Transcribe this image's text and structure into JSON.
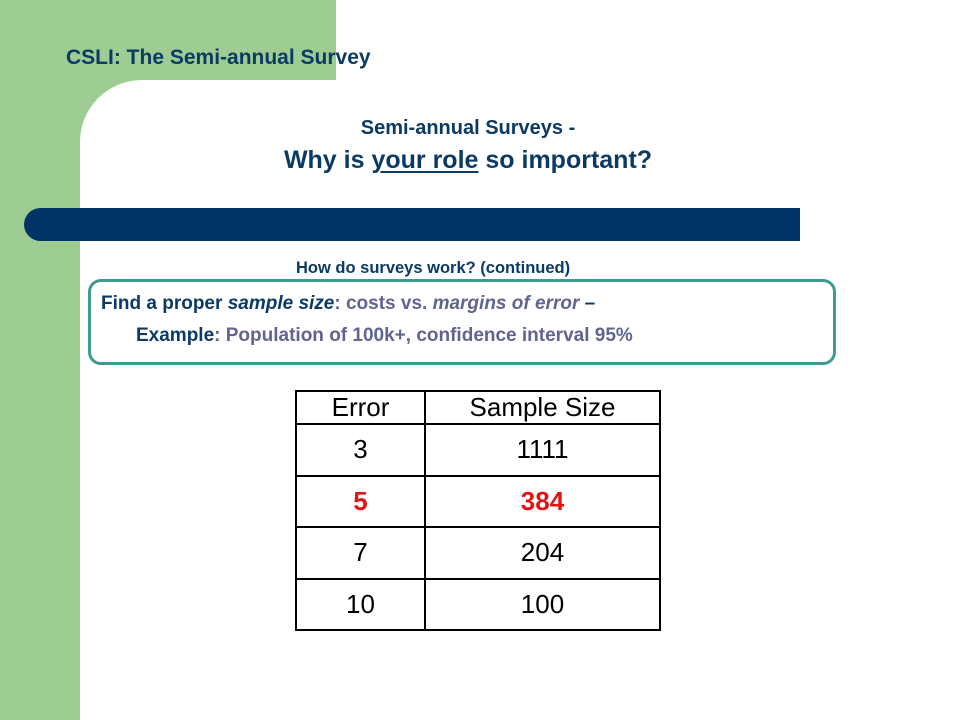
{
  "deck_title": "CSLI: The Semi-annual Survey",
  "heading": {
    "line1": "Semi-annual Surveys -",
    "line2_before": "Why is ",
    "line2_underlined": "your role",
    "line2_after": " so important?"
  },
  "subheading": "How do surveys work? (continued)",
  "callout": {
    "line1": {
      "part1": "Find a proper ",
      "part2_italic": "sample size",
      "part3": ": costs vs. ",
      "part4_italic": "margins of error",
      "part5": " –"
    },
    "line2": {
      "part1": "Example",
      "part2": ": Population of 100k+, confidence interval 95%"
    }
  },
  "table": {
    "headers": [
      "Error",
      "Sample Size"
    ],
    "rows": [
      {
        "error": "3",
        "sample_size": "1111",
        "highlighted": false
      },
      {
        "error": "5",
        "sample_size": "384",
        "highlighted": true
      },
      {
        "error": "7",
        "sample_size": "204",
        "highlighted": false
      },
      {
        "error": "10",
        "sample_size": "100",
        "highlighted": false
      }
    ]
  },
  "colors": {
    "green_band": "#9dcd93",
    "navy_bar": "#003366",
    "title_text": "#0b3a64",
    "callout_purple": "#606490",
    "callout_border": "#3f9a90",
    "highlight_red": "#e01414"
  }
}
